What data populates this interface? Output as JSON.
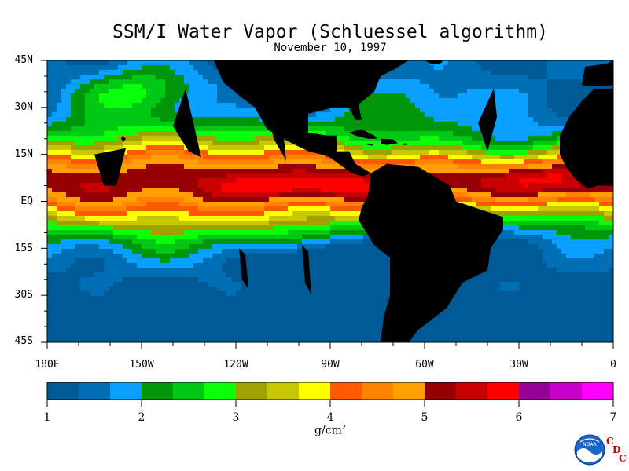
{
  "title": "SSM/I Water Vapor (Schluessel algorithm)",
  "subtitle": "November 10, 1997",
  "lat_labels": [
    "45N",
    "30N",
    "15N",
    "EQ",
    "15S",
    "30S",
    "45S"
  ],
  "lon_labels": [
    "180E",
    "150W",
    "120W",
    "90W",
    "60W",
    "30W",
    "0"
  ],
  "scale_labels": [
    "1",
    "2",
    "3",
    "4",
    "5",
    "6",
    "7"
  ],
  "unit": "g/cm",
  "unit_sup": "2",
  "colors": {
    "land": "#000000",
    "scale": [
      "#005a96",
      "#006eb4",
      "#0aa0ff",
      "#00960a",
      "#00c814",
      "#0aff0a",
      "#a0a000",
      "#c8c800",
      "#ffff00",
      "#ff5a00",
      "#ff8200",
      "#ffa000",
      "#960000",
      "#c80000",
      "#ff0000",
      "#960096",
      "#c800c8",
      "#ff00ff"
    ]
  },
  "legend": {
    "min": 1,
    "max": 7,
    "step": 0.3333
  },
  "logo": {
    "name": "NOAA",
    "c": "C",
    "d": "D",
    "c2": "C"
  }
}
